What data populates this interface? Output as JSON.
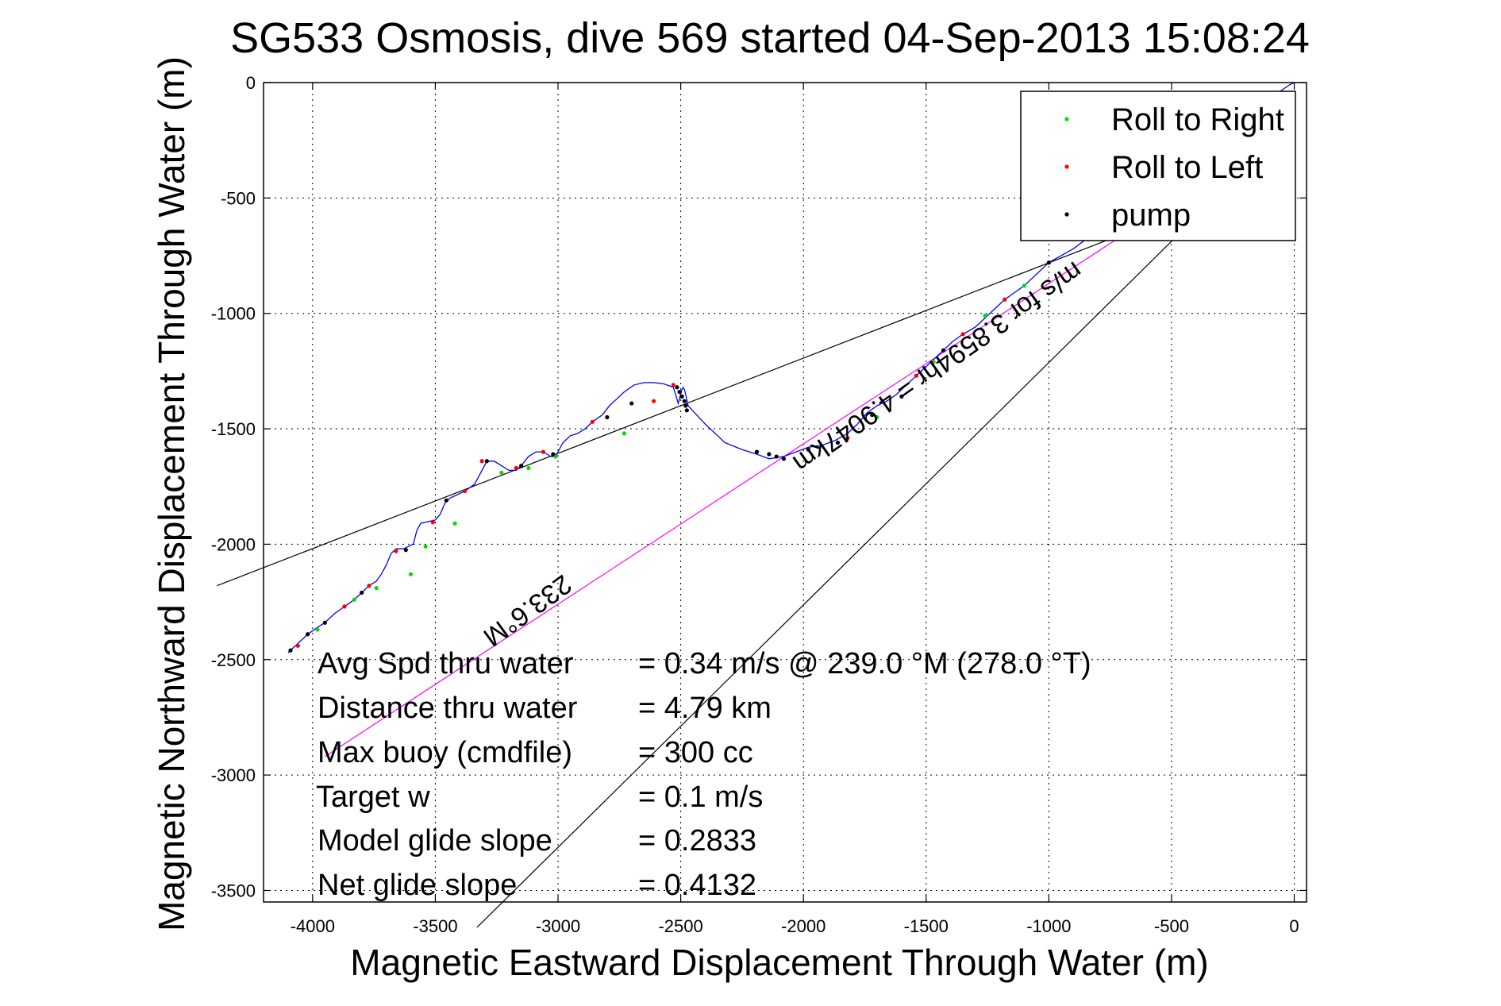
{
  "chart_data": {
    "type": "scatter",
    "title": "SG533 Osmosis, dive 569 started 04-Sep-2013 15:08:24",
    "xlabel": "Magnetic Eastward Displacement Through Water (m)",
    "ylabel": "Magnetic Northward Displacement Through Water (m)",
    "xlim": [
      -4200,
      50
    ],
    "ylim": [
      -3550,
      0
    ],
    "xticks": [
      -4000,
      -3500,
      -3000,
      -2500,
      -2000,
      -1500,
      -1000,
      -500,
      0
    ],
    "yticks": [
      0,
      -500,
      -1000,
      -1500,
      -2000,
      -2500,
      -3000,
      -3500
    ],
    "grid": true,
    "legend": {
      "placement": "top-right",
      "entries": [
        {
          "label": "Roll to Right",
          "color": "#00dd00"
        },
        {
          "label": "Roll to Left",
          "color": "#ff0000"
        },
        {
          "label": "pump",
          "color": "#000000"
        }
      ]
    },
    "series": [
      {
        "color": "#0000ff",
        "x": [
          -4100,
          -4060,
          -4020,
          -3980,
          -3950,
          -3910,
          -3870,
          -3830,
          -3800,
          -3770,
          -3740,
          -3720,
          -3700,
          -3680,
          -3660,
          -3630,
          -3610,
          -3590,
          -3575,
          -3560,
          -3540,
          -3500,
          -3480,
          -3460,
          -3440,
          -3420,
          -3380,
          -3340,
          -3310,
          -3290,
          -3260,
          -3230,
          -3200,
          -3170,
          -3150,
          -3120,
          -3090,
          -3060,
          -3030,
          -3010,
          -2980,
          -2950,
          -2920,
          -2890,
          -2860,
          -2820,
          -2790,
          -2760,
          -2730,
          -2690,
          -2650,
          -2610,
          -2570,
          -2530,
          -2510,
          -2495,
          -2490,
          -2485,
          -2480,
          -2470,
          -2400,
          -2320,
          -2250,
          -2190,
          -2140,
          -2080,
          -2030,
          -1980,
          -1920,
          -1870,
          -1820,
          -1780,
          -1740,
          -1700,
          -1660,
          -1620,
          -1580,
          -1540,
          -1500,
          -1470,
          -1430,
          -1390,
          -1350,
          -1300,
          -1260,
          -1220,
          -1180,
          -1140,
          -1100,
          -1060,
          -1000,
          -900,
          -700,
          -500,
          -300,
          -150,
          -60,
          -20,
          0
        ],
        "y": [
          -2470,
          -2430,
          -2390,
          -2360,
          -2340,
          -2300,
          -2270,
          -2240,
          -2210,
          -2180,
          -2160,
          -2130,
          -2090,
          -2040,
          -2020,
          -2020,
          -2010,
          -2000,
          -1940,
          -1910,
          -1905,
          -1895,
          -1870,
          -1820,
          -1800,
          -1790,
          -1770,
          -1740,
          -1680,
          -1640,
          -1640,
          -1660,
          -1680,
          -1680,
          -1660,
          -1620,
          -1600,
          -1600,
          -1620,
          -1620,
          -1560,
          -1530,
          -1520,
          -1500,
          -1470,
          -1440,
          -1400,
          -1370,
          -1340,
          -1310,
          -1300,
          -1300,
          -1305,
          -1320,
          -1390,
          -1330,
          -1320,
          -1330,
          -1350,
          -1400,
          -1480,
          -1560,
          -1590,
          -1610,
          -1630,
          -1620,
          -1600,
          -1580,
          -1570,
          -1550,
          -1520,
          -1480,
          -1430,
          -1400,
          -1380,
          -1350,
          -1310,
          -1270,
          -1230,
          -1200,
          -1160,
          -1120,
          -1090,
          -1060,
          -1020,
          -980,
          -940,
          -910,
          -880,
          -840,
          -780,
          -720,
          -560,
          -420,
          -260,
          -120,
          -40,
          -10,
          0
        ]
      },
      {
        "name": "Roll to Right",
        "color": "#00dd00",
        "x": [
          -3980,
          -3830,
          -3740,
          -3600,
          -3540,
          -3420,
          -3230,
          -3120,
          -3010,
          -2730,
          -1700,
          -1470,
          -1260,
          -1100
        ],
        "y": [
          -2370,
          -2240,
          -2190,
          -2130,
          -2010,
          -1910,
          -1690,
          -1670,
          -1620,
          -1520,
          -1450,
          -1210,
          -1010,
          -880
        ]
      },
      {
        "name": "Roll to Left",
        "color": "#ff0000",
        "x": [
          -4060,
          -3870,
          -3770,
          -3660,
          -3510,
          -3380,
          -3310,
          -3170,
          -3060,
          -2860,
          -2610,
          -2530,
          -1820,
          -1540,
          -1350,
          -1180
        ],
        "y": [
          -2440,
          -2270,
          -2180,
          -2030,
          -1905,
          -1770,
          -1640,
          -1670,
          -1600,
          -1470,
          -1380,
          -1310,
          -1540,
          -1270,
          -1090,
          -940
        ]
      },
      {
        "name": "pump",
        "color": "#000000",
        "x": [
          -4090,
          -4020,
          -3950,
          -3800,
          -3620,
          -3455,
          -3290,
          -3150,
          -3020,
          -2800,
          -2700,
          -2515,
          -2505,
          -2495,
          -2485,
          -2480,
          -2475,
          -2190,
          -2140,
          -2110,
          -2080,
          -1980,
          -1860,
          -1720,
          -1600,
          -1430,
          -1000
        ],
        "y": [
          -2460,
          -2390,
          -2340,
          -2210,
          -2025,
          -1810,
          -1640,
          -1660,
          -1610,
          -1450,
          -1390,
          -1320,
          -1340,
          -1360,
          -1380,
          -1400,
          -1420,
          -1600,
          -1610,
          -1620,
          -1630,
          -1590,
          -1560,
          -1440,
          -1360,
          -1160,
          -780
        ]
      }
    ],
    "lines": [
      {
        "color": "#000000",
        "x": [
          -4390,
          -150
        ],
        "y": [
          -2180,
          -430
        ]
      },
      {
        "color": "#000000",
        "x": [
          -3330,
          -150
        ],
        "y": [
          -3660,
          -320
        ]
      },
      {
        "color": "#ff00ff",
        "x": [
          -3950,
          -150
        ],
        "y": [
          -2920,
          -280
        ]
      }
    ],
    "annotations": [
      {
        "text": "233.6°M",
        "rotation": 144
      },
      {
        "text": "m/s for 3.8594hr = 4.9047km",
        "rotation": 145
      }
    ],
    "stats": [
      {
        "label": "Avg Spd thru water",
        "value": "=  0.34 m/s @ 239.0 °M (278.0 °T)"
      },
      {
        "label": "Distance thru water",
        "value": "=  4.79 km"
      },
      {
        "label": "Max buoy (cmdfile)",
        "value": "= 300 cc"
      },
      {
        "label": "Target w",
        "value": "= 0.1 m/s"
      },
      {
        "label": "Model glide slope",
        "value": "= 0.2833"
      },
      {
        "label": "Net glide slope",
        "value": "= 0.4132"
      }
    ]
  }
}
